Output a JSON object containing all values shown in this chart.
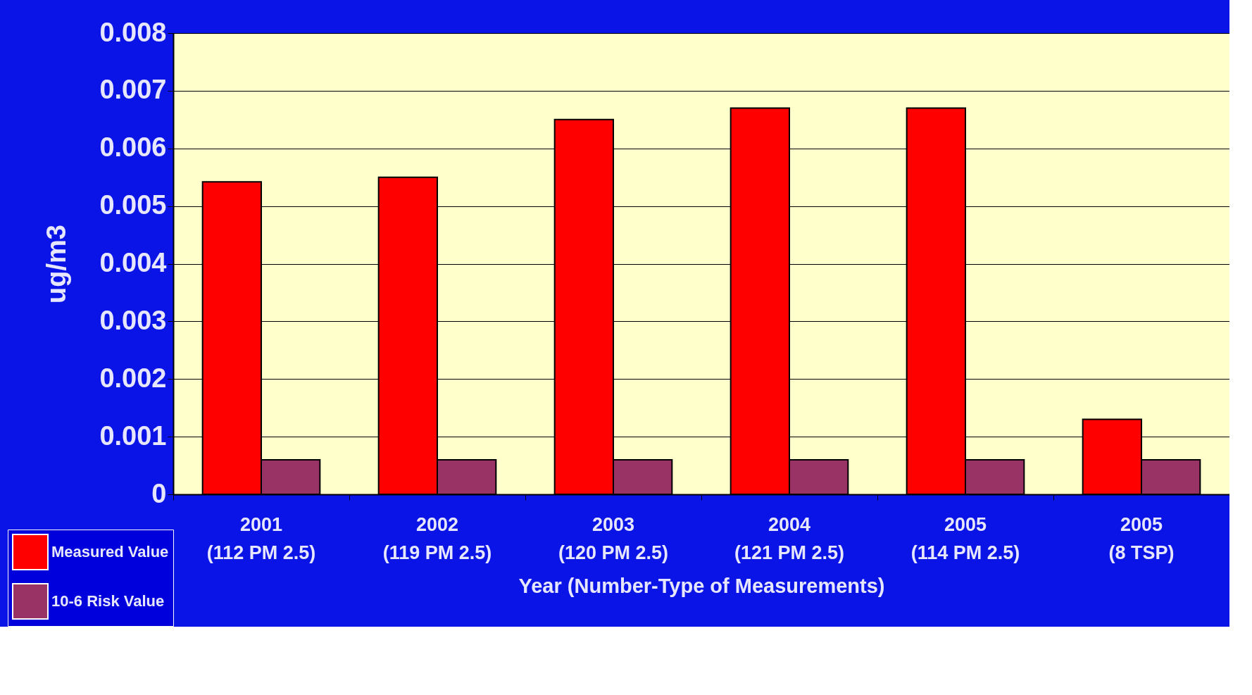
{
  "chart_data": {
    "type": "bar",
    "categories": [
      "2001\n(112 PM 2.5)",
      "2002\n(119 PM 2.5)",
      "2003\n(120 PM 2.5)",
      "2004\n(121 PM 2.5)",
      "2005\n(114 PM 2.5)",
      "2005\n(8 TSP)"
    ],
    "series": [
      {
        "name": "Measured Value",
        "color": "#ff0000",
        "values": [
          0.00542,
          0.0055,
          0.0065,
          0.0067,
          0.0067,
          0.0013
        ]
      },
      {
        "name": "10-6 Risk Value",
        "color": "#993366",
        "values": [
          0.0006,
          0.0006,
          0.0006,
          0.0006,
          0.0006,
          0.0006
        ]
      }
    ],
    "ylabel": "ug/m3",
    "xlabel": "Year (Number-Type of Measurements)",
    "ylim": [
      0,
      0.008
    ],
    "yticks": [
      0,
      0.001,
      0.002,
      0.003,
      0.004,
      0.005,
      0.006,
      0.007,
      0.008
    ],
    "grid": "y",
    "legend": "bottom left"
  }
}
